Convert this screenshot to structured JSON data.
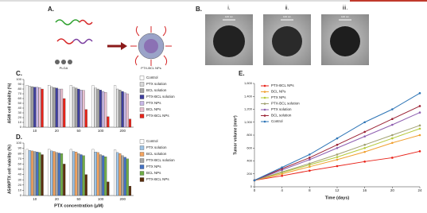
{
  "figure": {
    "panels": [
      "A.",
      "B.",
      "C.",
      "D.",
      "E."
    ],
    "schematic": {
      "labels": [
        "PLGA",
        "PTX-BCL NPs"
      ]
    },
    "tem": {
      "images": [
        {
          "label": "i.",
          "scale": "100 nm"
        },
        {
          "label": "ii.",
          "scale": "100 nm"
        },
        {
          "label": "iii.",
          "scale": "100 nm"
        }
      ]
    }
  },
  "chart_data": [
    {
      "type": "bar",
      "y_label": "A549 cell viability (%)",
      "categories": [
        "10",
        "20",
        "50",
        "100",
        "200"
      ],
      "ylim": [
        0,
        100
      ],
      "yticks": [
        0,
        10,
        20,
        30,
        40,
        50,
        60,
        70,
        80,
        90,
        100
      ],
      "legend": "right",
      "series": [
        {
          "name": "Control",
          "color": "#ffffff",
          "values": [
            88,
            88,
            88,
            87,
            87
          ]
        },
        {
          "name": "PTX solution",
          "color": "#d9d9d9",
          "values": [
            86,
            85,
            84,
            82,
            80
          ]
        },
        {
          "name": "BCL solution",
          "color": "#a6a6a6",
          "values": [
            85,
            83,
            82,
            80,
            78
          ]
        },
        {
          "name": "PTX-BCL solution",
          "color": "#3f3f9f",
          "values": [
            84,
            82,
            80,
            78,
            75
          ]
        },
        {
          "name": "PTX NPs",
          "color": "#c9b8e8",
          "values": [
            84,
            80,
            78,
            75,
            72
          ]
        },
        {
          "name": "BCL NPs",
          "color": "#e8c0d0",
          "values": [
            83,
            80,
            77,
            73,
            70
          ]
        },
        {
          "name": "PTX-BCL NPs",
          "color": "#e8231a",
          "values": [
            80,
            60,
            37,
            22,
            17
          ]
        }
      ]
    },
    {
      "type": "bar",
      "y_label": "A549/PTX cell viability (%)",
      "x_label": "PTX concentration (μM)",
      "categories": [
        "10",
        "20",
        "50",
        "100",
        "200"
      ],
      "ylim": [
        0,
        100
      ],
      "yticks": [
        0,
        10,
        20,
        30,
        40,
        50,
        60,
        70,
        80,
        90,
        100
      ],
      "legend": "right",
      "series": [
        {
          "name": "Control",
          "color": "#ffffff",
          "values": [
            88,
            88,
            88,
            88,
            87
          ]
        },
        {
          "name": "PTX solution",
          "color": "#9dc3e6",
          "values": [
            86,
            85,
            84,
            83,
            82
          ]
        },
        {
          "name": "BCL solution",
          "color": "#f4a460",
          "values": [
            85,
            84,
            83,
            82,
            80
          ]
        },
        {
          "name": "PTX-BCL solution",
          "color": "#a6a6a6",
          "values": [
            84,
            82,
            80,
            78,
            76
          ]
        },
        {
          "name": "PTX NPs",
          "color": "#4472c4",
          "values": [
            83,
            81,
            78,
            76,
            73
          ]
        },
        {
          "name": "BCL NPs",
          "color": "#70ad47",
          "values": [
            82,
            80,
            76,
            74,
            70
          ]
        },
        {
          "name": "PTX-BCL NPs",
          "color": "#5a2d0c",
          "values": [
            78,
            60,
            40,
            26,
            18
          ]
        }
      ]
    },
    {
      "type": "line",
      "x_label": "Time (days)",
      "y_label": "Tumor volume (mm³)",
      "x": [
        0,
        4,
        8,
        12,
        16,
        20,
        24
      ],
      "xlim": [
        0,
        24
      ],
      "xticks": [
        0,
        4,
        8,
        12,
        16,
        20,
        24
      ],
      "ylim": [
        0,
        1600
      ],
      "yticks": [
        0,
        200,
        400,
        600,
        800,
        {
          "value": 1000,
          "label": "1,000"
        },
        {
          "value": 1200,
          "label": "1,200"
        },
        {
          "value": 1400,
          "label": "1,400"
        },
        {
          "value": 1600,
          "label": "1,600"
        }
      ],
      "legend": "upper left",
      "series": [
        {
          "name": "PTX-BCL NPs",
          "color": "#e8231a",
          "values": [
            100,
            170,
            250,
            320,
            390,
            450,
            550
          ]
        },
        {
          "name": "BCL NPs",
          "color": "#f0a030",
          "values": [
            100,
            200,
            310,
            420,
            540,
            680,
            800
          ]
        },
        {
          "name": "PTX NPs",
          "color": "#b5c93a",
          "values": [
            100,
            220,
            340,
            460,
            600,
            750,
            900
          ]
        },
        {
          "name": "PTX-BCL solution",
          "color": "#a0a070",
          "values": [
            100,
            230,
            360,
            500,
            650,
            800,
            950
          ]
        },
        {
          "name": "PTX solution",
          "color": "#8e5fb0",
          "values": [
            100,
            260,
            420,
            600,
            780,
            960,
            1150
          ]
        },
        {
          "name": "BCL solution",
          "color": "#9b2335",
          "values": [
            100,
            280,
            450,
            650,
            850,
            1050,
            1250
          ]
        },
        {
          "name": "Control",
          "color": "#2e75b6",
          "values": [
            100,
            300,
            500,
            750,
            1000,
            1200,
            1450
          ]
        }
      ]
    }
  ]
}
